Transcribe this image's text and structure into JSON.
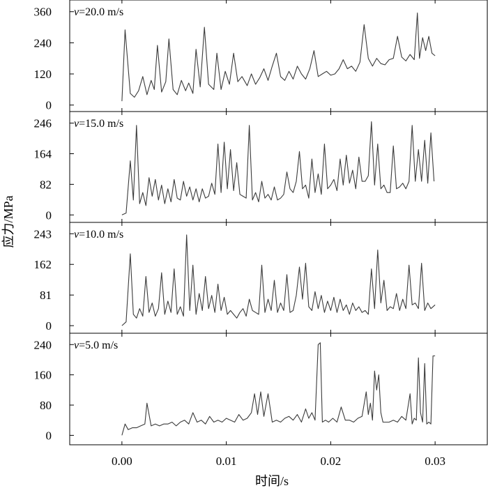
{
  "chart_data": {
    "type": "line",
    "xlabel": "时间/s",
    "ylabel": "应力/MPa",
    "xlim": [
      -0.005,
      0.035
    ],
    "xticks": [
      "0.00",
      "0.01",
      "0.02",
      "0.03"
    ],
    "xtick_values": [
      0.0,
      0.01,
      0.02,
      0.03
    ],
    "grid": false,
    "panels": [
      {
        "label_var": "v",
        "label_rest": "=20.0 m/s",
        "ylim": [
          -25,
          405
        ],
        "yticks": [
          0,
          120,
          240,
          360
        ],
        "x": [
          0.0,
          0.0003,
          0.0008,
          0.0012,
          0.0016,
          0.002,
          0.0024,
          0.0028,
          0.0031,
          0.0034,
          0.0038,
          0.0042,
          0.0045,
          0.0049,
          0.0053,
          0.0057,
          0.0061,
          0.0064,
          0.0068,
          0.0071,
          0.0075,
          0.0079,
          0.0083,
          0.0088,
          0.0091,
          0.0095,
          0.0099,
          0.0103,
          0.0107,
          0.0111,
          0.0115,
          0.012,
          0.0124,
          0.0128,
          0.0132,
          0.0136,
          0.014,
          0.0144,
          0.0148,
          0.0152,
          0.0156,
          0.016,
          0.0164,
          0.0168,
          0.0172,
          0.0176,
          0.018,
          0.0184,
          0.0188,
          0.0192,
          0.0196,
          0.02,
          0.0204,
          0.0208,
          0.0212,
          0.0216,
          0.022,
          0.0224,
          0.0228,
          0.0232,
          0.0236,
          0.024,
          0.0244,
          0.0248,
          0.0252,
          0.0256,
          0.026,
          0.0264,
          0.0268,
          0.0272,
          0.0276,
          0.028,
          0.0283,
          0.0285,
          0.0288,
          0.0291,
          0.0294,
          0.0297,
          0.03
        ],
        "y": [
          15,
          290,
          45,
          30,
          55,
          110,
          40,
          95,
          60,
          230,
          50,
          90,
          255,
          60,
          40,
          95,
          55,
          85,
          45,
          215,
          70,
          300,
          80,
          60,
          200,
          60,
          130,
          80,
          200,
          90,
          110,
          75,
          120,
          80,
          105,
          140,
          95,
          150,
          200,
          110,
          95,
          130,
          100,
          150,
          120,
          100,
          140,
          210,
          110,
          120,
          130,
          115,
          120,
          140,
          175,
          140,
          150,
          130,
          165,
          310,
          180,
          150,
          180,
          160,
          155,
          175,
          180,
          265,
          185,
          170,
          195,
          175,
          355,
          180,
          260,
          210,
          265,
          200,
          190
        ]
      },
      {
        "label_var": "v",
        "label_rest": "=15.0 m/s",
        "ylim": [
          -20,
          277
        ],
        "yticks": [
          0,
          82,
          164,
          246
        ],
        "x": [
          0.0,
          0.0004,
          0.0008,
          0.0011,
          0.0014,
          0.0017,
          0.002,
          0.0023,
          0.0026,
          0.0029,
          0.0032,
          0.0035,
          0.0038,
          0.0041,
          0.0044,
          0.0047,
          0.005,
          0.0053,
          0.0056,
          0.0059,
          0.0062,
          0.0065,
          0.0068,
          0.0071,
          0.0074,
          0.0077,
          0.008,
          0.0083,
          0.0086,
          0.0089,
          0.0092,
          0.0095,
          0.0098,
          0.0101,
          0.0104,
          0.0107,
          0.011,
          0.0113,
          0.0116,
          0.0119,
          0.0122,
          0.0125,
          0.0128,
          0.0131,
          0.0134,
          0.0137,
          0.014,
          0.0143,
          0.0146,
          0.0149,
          0.0152,
          0.0155,
          0.0158,
          0.0161,
          0.0164,
          0.0167,
          0.017,
          0.0173,
          0.0176,
          0.0179,
          0.0182,
          0.0185,
          0.0188,
          0.0191,
          0.0194,
          0.0197,
          0.02,
          0.0203,
          0.0206,
          0.0209,
          0.0212,
          0.0215,
          0.0218,
          0.0221,
          0.0224,
          0.0227,
          0.023,
          0.0233,
          0.0236,
          0.0239,
          0.0242,
          0.0245,
          0.0248,
          0.0251,
          0.0254,
          0.0257,
          0.026,
          0.0263,
          0.0266,
          0.0269,
          0.0272,
          0.0275,
          0.0278,
          0.0281,
          0.0284,
          0.0287,
          0.029,
          0.0293,
          0.0296,
          0.0299
        ],
        "y": [
          0,
          5,
          145,
          40,
          240,
          30,
          60,
          25,
          100,
          50,
          95,
          40,
          80,
          30,
          70,
          35,
          95,
          45,
          40,
          90,
          50,
          75,
          40,
          70,
          35,
          70,
          45,
          50,
          85,
          55,
          190,
          60,
          195,
          70,
          175,
          65,
          140,
          55,
          50,
          45,
          240,
          40,
          60,
          35,
          90,
          45,
          55,
          40,
          75,
          40,
          45,
          55,
          115,
          70,
          60,
          90,
          170,
          70,
          80,
          45,
          150,
          60,
          110,
          55,
          190,
          70,
          80,
          95,
          65,
          150,
          80,
          160,
          85,
          120,
          70,
          155,
          90,
          90,
          105,
          250,
          80,
          190,
          70,
          80,
          60,
          60,
          185,
          70,
          75,
          85,
          70,
          90,
          240,
          90,
          175,
          90,
          200,
          85,
          220,
          90
        ]
      },
      {
        "label_var": "v",
        "label_rest": "=10.0 m/s",
        "ylim": [
          -20,
          273
        ],
        "yticks": [
          0,
          81,
          162,
          243
        ],
        "x": [
          0.0,
          0.0004,
          0.0008,
          0.0011,
          0.0014,
          0.0017,
          0.002,
          0.0023,
          0.0026,
          0.0029,
          0.0032,
          0.0035,
          0.0038,
          0.0041,
          0.0044,
          0.0047,
          0.005,
          0.0053,
          0.0056,
          0.0059,
          0.0062,
          0.0065,
          0.0068,
          0.0071,
          0.0074,
          0.0077,
          0.008,
          0.0083,
          0.0086,
          0.0089,
          0.0092,
          0.0095,
          0.0098,
          0.0101,
          0.0104,
          0.0107,
          0.011,
          0.0113,
          0.0116,
          0.0119,
          0.0122,
          0.0125,
          0.0128,
          0.0131,
          0.0134,
          0.0137,
          0.014,
          0.0143,
          0.0146,
          0.0149,
          0.0152,
          0.0155,
          0.0158,
          0.0161,
          0.0164,
          0.0167,
          0.017,
          0.0173,
          0.0176,
          0.0179,
          0.0182,
          0.0185,
          0.0188,
          0.0191,
          0.0194,
          0.0197,
          0.02,
          0.0203,
          0.0206,
          0.0209,
          0.0212,
          0.0215,
          0.0218,
          0.0221,
          0.0224,
          0.0227,
          0.023,
          0.0233,
          0.0236,
          0.0239,
          0.0242,
          0.0245,
          0.0248,
          0.0251,
          0.0254,
          0.0257,
          0.026,
          0.0263,
          0.0266,
          0.0269,
          0.0272,
          0.0275,
          0.0278,
          0.0281,
          0.0284,
          0.0287,
          0.029,
          0.0293,
          0.0296,
          0.03
        ],
        "y": [
          0,
          10,
          190,
          30,
          20,
          45,
          25,
          130,
          35,
          60,
          25,
          45,
          140,
          30,
          65,
          35,
          150,
          30,
          50,
          25,
          240,
          40,
          160,
          30,
          85,
          40,
          130,
          45,
          80,
          35,
          110,
          40,
          75,
          30,
          40,
          30,
          20,
          35,
          45,
          25,
          70,
          40,
          35,
          30,
          160,
          35,
          70,
          40,
          120,
          35,
          60,
          40,
          135,
          35,
          40,
          80,
          155,
          70,
          165,
          50,
          40,
          90,
          45,
          80,
          35,
          65,
          40,
          75,
          35,
          70,
          40,
          55,
          30,
          60,
          40,
          50,
          35,
          40,
          30,
          150,
          45,
          200,
          60,
          120,
          40,
          50,
          45,
          85,
          40,
          70,
          45,
          160,
          55,
          60,
          45,
          165,
          40,
          60,
          45,
          55
        ]
      },
      {
        "label_var": "v",
        "label_rest": "=5.0 m/s",
        "ylim": [
          -25,
          270
        ],
        "yticks": [
          0,
          80,
          160,
          240
        ],
        "x": [
          0.0,
          0.0003,
          0.0006,
          0.001,
          0.0014,
          0.0018,
          0.0022,
          0.0024,
          0.0028,
          0.0032,
          0.0036,
          0.004,
          0.0044,
          0.0048,
          0.0052,
          0.0056,
          0.006,
          0.0064,
          0.0068,
          0.0072,
          0.0076,
          0.008,
          0.0084,
          0.0088,
          0.0092,
          0.0096,
          0.01,
          0.0104,
          0.0108,
          0.0112,
          0.0116,
          0.012,
          0.0124,
          0.0127,
          0.013,
          0.0133,
          0.0136,
          0.014,
          0.0144,
          0.0148,
          0.0152,
          0.0156,
          0.016,
          0.0164,
          0.0168,
          0.0172,
          0.0176,
          0.0179,
          0.0182,
          0.0185,
          0.0188,
          0.019,
          0.0192,
          0.0195,
          0.0198,
          0.0202,
          0.0206,
          0.021,
          0.0214,
          0.0218,
          0.0222,
          0.0226,
          0.023,
          0.0234,
          0.0236,
          0.0238,
          0.024,
          0.0242,
          0.0244,
          0.0246,
          0.0248,
          0.025,
          0.0252,
          0.0256,
          0.026,
          0.0264,
          0.0268,
          0.0272,
          0.0276,
          0.0278,
          0.028,
          0.0282,
          0.0284,
          0.0286,
          0.0288,
          0.029,
          0.0292,
          0.0294,
          0.0296,
          0.0298,
          0.03
        ],
        "y": [
          0,
          30,
          15,
          20,
          20,
          25,
          30,
          85,
          25,
          30,
          25,
          30,
          30,
          35,
          25,
          35,
          40,
          30,
          60,
          35,
          40,
          30,
          50,
          35,
          40,
          35,
          45,
          40,
          35,
          55,
          40,
          45,
          60,
          110,
          55,
          115,
          50,
          110,
          35,
          40,
          35,
          45,
          50,
          40,
          55,
          35,
          70,
          45,
          60,
          40,
          240,
          245,
          35,
          40,
          35,
          45,
          35,
          75,
          40,
          40,
          35,
          45,
          50,
          115,
          55,
          85,
          40,
          170,
          120,
          160,
          60,
          35,
          35,
          35,
          40,
          35,
          50,
          40,
          110,
          30,
          45,
          40,
          205,
          60,
          35,
          190,
          30,
          35,
          30,
          210,
          210
        ]
      }
    ]
  }
}
